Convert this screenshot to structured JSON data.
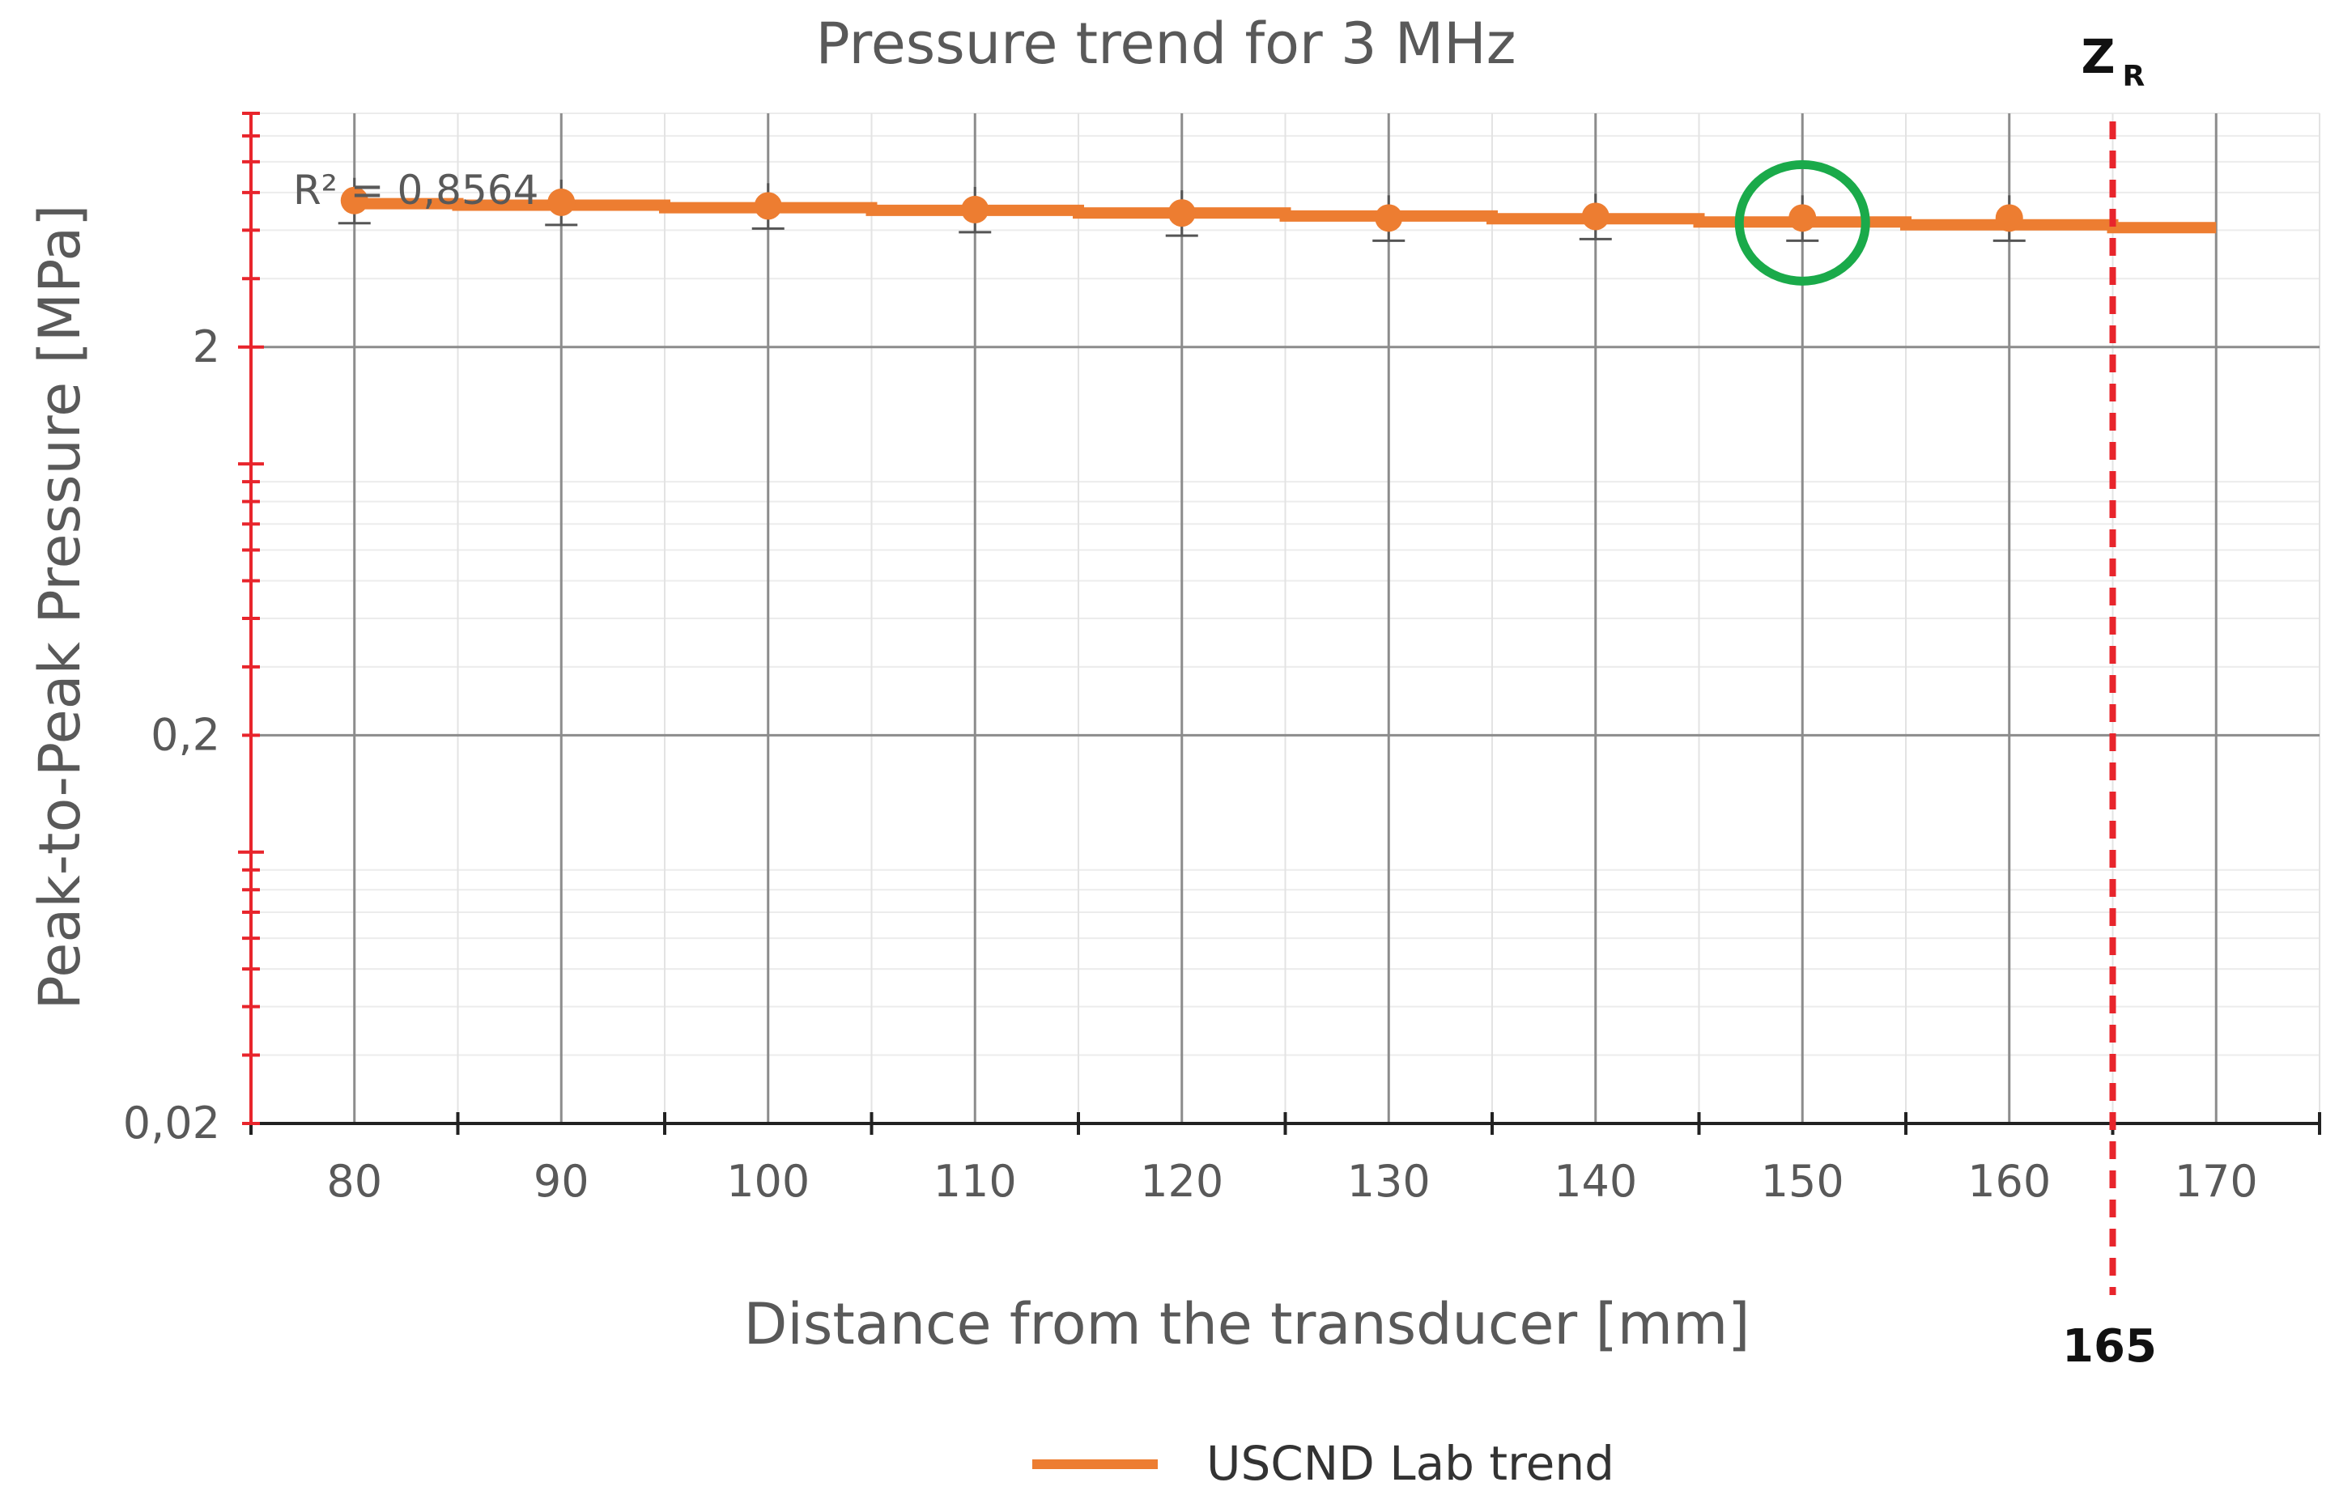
{
  "chart_data": {
    "type": "line",
    "title": "Pressure trend for 3 MHz",
    "xlabel": "Distance from the transducer [mm]",
    "ylabel": "Peak-to-Peak Pressure [MPa]",
    "y_scale": "log",
    "ylim": [
      0.02,
      8
    ],
    "xlim": [
      75,
      175
    ],
    "x_ticks": [
      "80",
      "90",
      "100",
      "110",
      "120",
      "130",
      "140",
      "150",
      "160",
      "170"
    ],
    "y_ticks": [
      "2",
      "0,2",
      "0,02"
    ],
    "grid": true,
    "legend_position": "bottom",
    "annotation_r2": "R² = 0,8564",
    "series": [
      {
        "name": "USCND Lab trend",
        "color": "#ED7D31",
        "points": [
          {
            "x": 80,
            "y": 4.77
          },
          {
            "x": 90,
            "y": 4.72
          },
          {
            "x": 100,
            "y": 4.62
          },
          {
            "x": 110,
            "y": 4.52
          },
          {
            "x": 120,
            "y": 4.43
          },
          {
            "x": 130,
            "y": 4.3
          },
          {
            "x": 140,
            "y": 4.34
          },
          {
            "x": 150,
            "y": 4.3
          },
          {
            "x": 160,
            "y": 4.3
          }
        ],
        "trend": [
          {
            "x": 80,
            "y": 4.68
          },
          {
            "x": 90,
            "y": 4.64
          },
          {
            "x": 100,
            "y": 4.57
          },
          {
            "x": 110,
            "y": 4.5
          },
          {
            "x": 120,
            "y": 4.43
          },
          {
            "x": 130,
            "y": 4.35
          },
          {
            "x": 140,
            "y": 4.28
          },
          {
            "x": 150,
            "y": 4.2
          },
          {
            "x": 160,
            "y": 4.13
          },
          {
            "x": 170,
            "y": 4.06
          }
        ]
      }
    ],
    "reference_line": {
      "x": 165,
      "label": "165",
      "name_main": "Z",
      "name_sub": "R",
      "color": "#E8252C"
    },
    "highlight": {
      "x": 150,
      "y": 4.3,
      "color": "#1AAA4A"
    },
    "axis_color_y": "#E8252C"
  }
}
